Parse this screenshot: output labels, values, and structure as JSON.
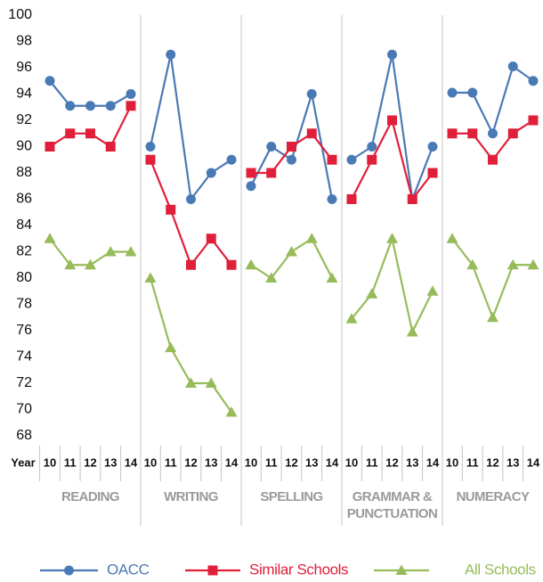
{
  "chart_data": {
    "type": "line",
    "x_label": "Year",
    "categories": [
      "10",
      "11",
      "12",
      "13",
      "14"
    ],
    "panels": [
      "READING",
      "WRITING",
      "SPELLING",
      "GRAMMAR & PUNCTUATION",
      "NUMERACY"
    ],
    "ylim": [
      68,
      100
    ],
    "yticks": [
      68,
      70,
      72,
      74,
      76,
      78,
      80,
      82,
      84,
      86,
      88,
      90,
      92,
      94,
      96,
      98,
      100
    ],
    "series": [
      {
        "name": "OACC",
        "color": "#4a7ab5",
        "marker": "circle",
        "values": [
          [
            95,
            93.1,
            93.1,
            93.1,
            94
          ],
          [
            90,
            97,
            86,
            88,
            89
          ],
          [
            87,
            90,
            89,
            94,
            86
          ],
          [
            89,
            90,
            97,
            86,
            90
          ],
          [
            94.1,
            94.1,
            91,
            96.1,
            95
          ]
        ]
      },
      {
        "name": "Similar Schools",
        "color": "#e0203a",
        "marker": "square",
        "values": [
          [
            90,
            91,
            91,
            90,
            93.1
          ],
          [
            89,
            85.2,
            81,
            83,
            81
          ],
          [
            88,
            88,
            90,
            91,
            89
          ],
          [
            86,
            89,
            92,
            86,
            88
          ],
          [
            91,
            91,
            89,
            91,
            92
          ]
        ]
      },
      {
        "name": "All Schools",
        "color": "#98bb5a",
        "marker": "triangle",
        "values": [
          [
            83,
            81,
            81,
            82,
            82
          ],
          [
            80,
            74.7,
            72,
            72,
            69.8
          ],
          [
            81,
            80,
            82,
            83,
            80
          ],
          [
            76.9,
            78.8,
            83,
            75.9,
            79
          ],
          [
            83,
            81,
            77,
            81,
            81
          ]
        ]
      }
    ]
  }
}
